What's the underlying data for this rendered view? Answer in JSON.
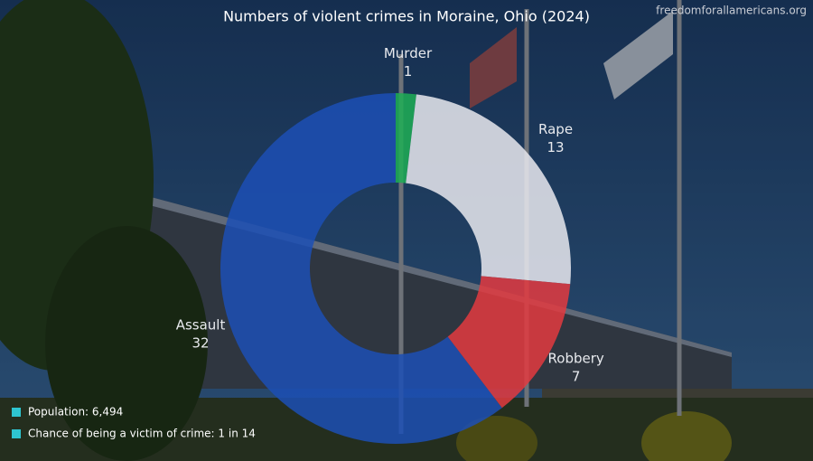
{
  "chart_data": {
    "type": "donut",
    "title": "Numbers of violent crimes in Moraine, Ohio (2024)",
    "categories": [
      "Murder",
      "Rape",
      "Robbery",
      "Assault"
    ],
    "values": [
      1,
      13,
      7,
      32
    ],
    "colors": [
      "#1fae55",
      "#e9e9ee",
      "#e3393f",
      "#1c4fb5"
    ]
  },
  "source": "freedomforallamericans.org",
  "notes": [
    "Population: 6,494",
    "Chance of being a victim of crime: 1 in 14"
  ]
}
